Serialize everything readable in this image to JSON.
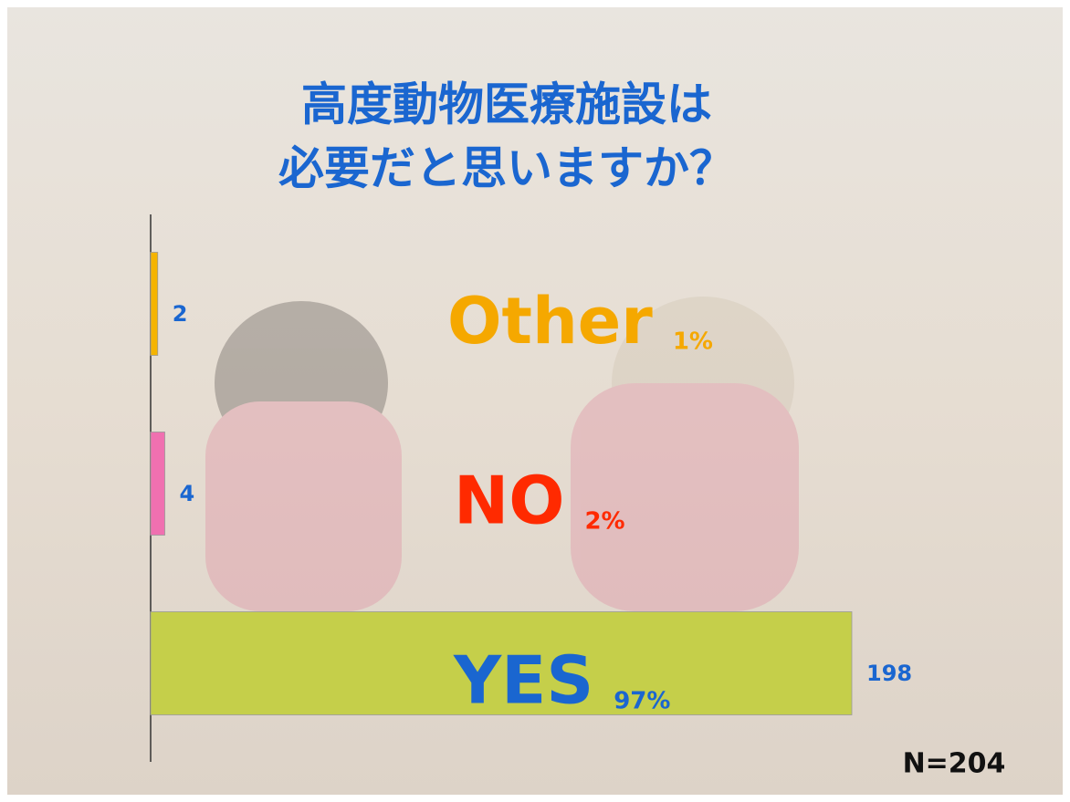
{
  "chart_data": {
    "type": "hbar",
    "title": [
      "高度動物医療施設は",
      "必要だと思いますか？"
    ],
    "categories": [
      "Other",
      "NO",
      "YES"
    ],
    "values": [
      2,
      4,
      198
    ],
    "percent_labels": [
      "1%",
      "2%",
      "97%"
    ],
    "colors": [
      "#f5b400",
      "#f070b0",
      "#c5cf4a"
    ],
    "label_colors": [
      "#f5a800",
      "#ff2a00",
      "#1a66d0"
    ],
    "xlim": [
      0,
      198
    ],
    "note": "N=204"
  }
}
